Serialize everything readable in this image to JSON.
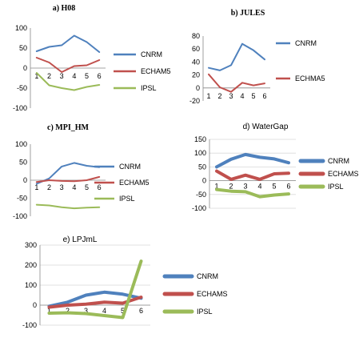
{
  "chart_data": [
    {
      "type": "line",
      "title": "a) H08",
      "title_style": "bold-serif",
      "x": [
        1,
        2,
        3,
        4,
        5,
        6
      ],
      "ylim": [
        -100,
        100
      ],
      "yticks": [
        -100,
        -50,
        0,
        50,
        100
      ],
      "grid": false,
      "legend": "right",
      "series": [
        {
          "name": "CNRM",
          "color": "#4f81bd",
          "values": [
            42,
            53,
            57,
            81,
            65,
            40
          ]
        },
        {
          "name": "ECHAM5",
          "color": "#c0504d",
          "values": [
            26,
            14,
            -10,
            5,
            7,
            20
          ]
        },
        {
          "name": "IPSL",
          "color": "#9bbb59",
          "values": [
            -12,
            -43,
            -50,
            -55,
            -47,
            -42
          ]
        }
      ]
    },
    {
      "type": "line",
      "title": "b) JULES",
      "title_style": "bold-serif",
      "x": [
        1,
        2,
        3,
        4,
        5,
        6
      ],
      "ylim": [
        -20,
        80
      ],
      "yticks": [
        -20,
        0,
        20,
        40,
        60,
        80
      ],
      "grid": false,
      "legend": "right",
      "series": [
        {
          "name": "CNRM",
          "color": "#4f81bd",
          "values": [
            31,
            27,
            35,
            68,
            58,
            44
          ]
        },
        {
          "name": "ECHMA5",
          "color": "#c0504d",
          "values": [
            21,
            1,
            -6,
            8,
            4,
            7
          ]
        }
      ]
    },
    {
      "type": "line",
      "title": "c) MPI_HM",
      "title_style": "bold-serif",
      "x": [
        1,
        2,
        3,
        4,
        5,
        6
      ],
      "ylim": [
        -100,
        100
      ],
      "yticks": [
        -100,
        -50,
        0,
        50,
        100
      ],
      "grid": false,
      "legend": "right",
      "series": [
        {
          "name": "CNRM",
          "color": "#4f81bd",
          "values": [
            -10,
            5,
            38,
            48,
            40,
            36
          ]
        },
        {
          "name": "ECHAM5",
          "color": "#c0504d",
          "values": [
            -5,
            0,
            -2,
            -3,
            0,
            9
          ]
        },
        {
          "name": "IPSL",
          "color": "#9bbb59",
          "values": [
            -68,
            -70,
            -75,
            -78,
            -76,
            -75
          ]
        }
      ]
    },
    {
      "type": "line",
      "title": "d) WaterGap",
      "title_style": "regular-sans",
      "x": [
        1,
        2,
        3,
        4,
        5,
        6
      ],
      "ylim": [
        -100,
        150
      ],
      "yticks": [
        -100,
        -50,
        0,
        50,
        100,
        150
      ],
      "grid": true,
      "legend": "right",
      "thick": true,
      "series": [
        {
          "name": "CNRM",
          "color": "#4f81bd",
          "values": [
            50,
            78,
            95,
            85,
            79,
            65
          ]
        },
        {
          "name": "ECHAMS",
          "color": "#c0504d",
          "values": [
            35,
            5,
            20,
            5,
            25,
            27
          ]
        },
        {
          "name": "IPSL",
          "color": "#9bbb59",
          "values": [
            -32,
            -38,
            -40,
            -58,
            -52,
            -48
          ]
        }
      ]
    },
    {
      "type": "line",
      "title": "e) LPJmL",
      "title_style": "regular-sans",
      "x": [
        1,
        2,
        3,
        4,
        5,
        6
      ],
      "ylim": [
        -100,
        300
      ],
      "yticks": [
        -100,
        0,
        100,
        200,
        300
      ],
      "grid": true,
      "legend": "right",
      "thick": true,
      "series": [
        {
          "name": "CNRM",
          "color": "#4f81bd",
          "values": [
            -5,
            15,
            50,
            65,
            55,
            35
          ]
        },
        {
          "name": "ECHAMS",
          "color": "#c0504d",
          "values": [
            -10,
            0,
            5,
            15,
            10,
            40
          ]
        },
        {
          "name": "IPSL",
          "color": "#9bbb59",
          "values": [
            -40,
            -38,
            -42,
            -52,
            -62,
            220
          ]
        }
      ]
    }
  ]
}
